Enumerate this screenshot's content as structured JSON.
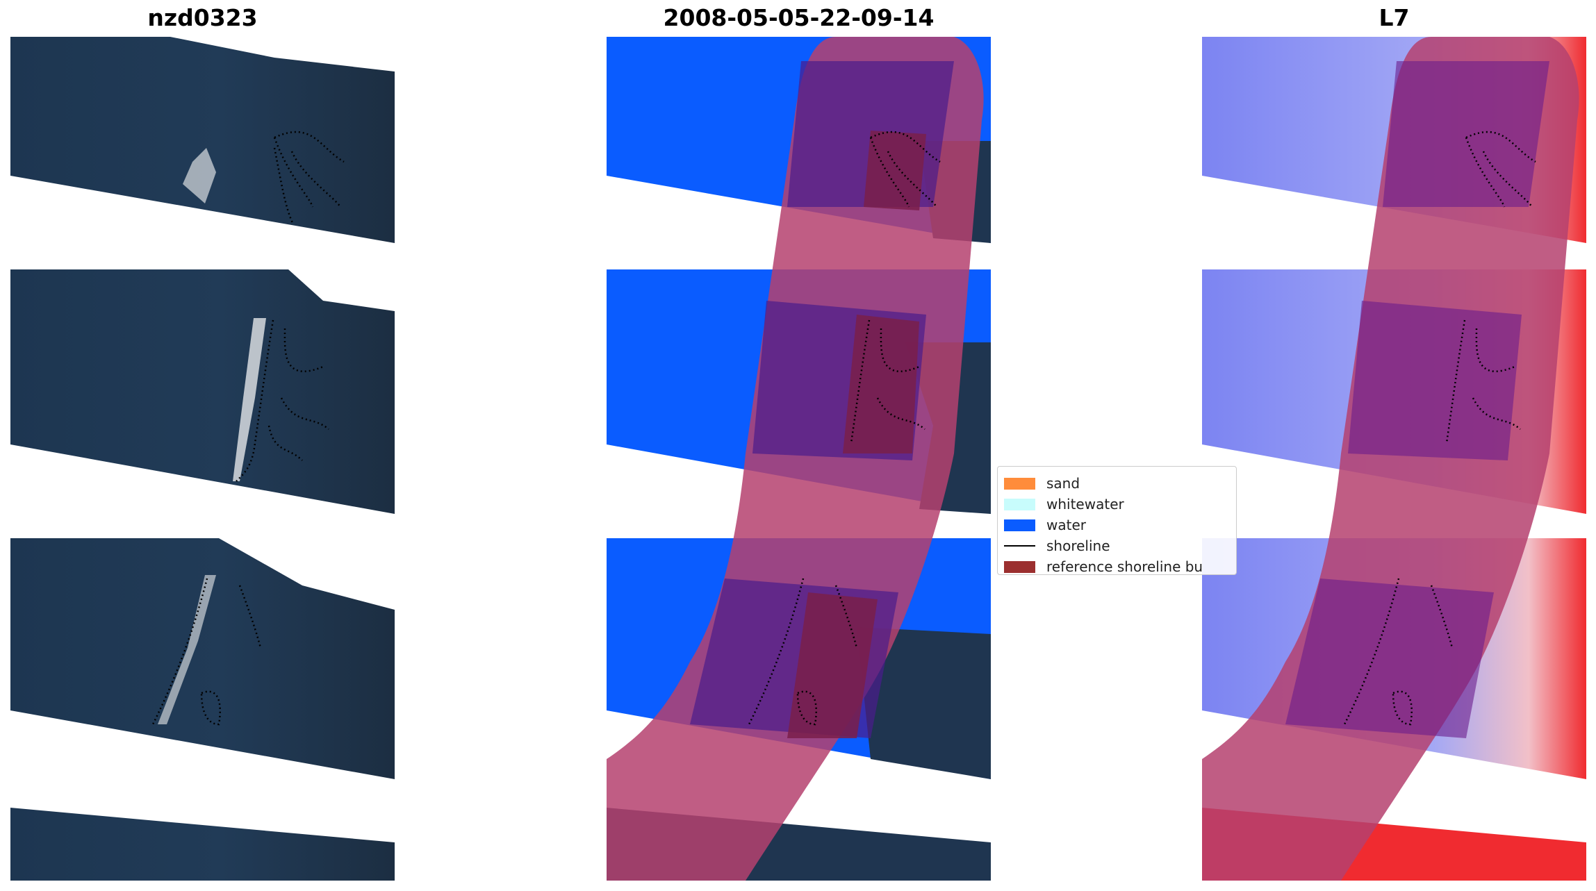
{
  "panels": [
    {
      "title": "nzd0323"
    },
    {
      "title": "2008-05-05-22-09-14"
    },
    {
      "title": "L7"
    }
  ],
  "legend": {
    "items": [
      {
        "label": "sand",
        "kind": "swatch",
        "color": "#ff8c3b"
      },
      {
        "label": "whitewater",
        "kind": "swatch",
        "color": "#c8fcfc"
      },
      {
        "label": "water",
        "kind": "swatch",
        "color": "#0a5cff"
      },
      {
        "label": "shoreline",
        "kind": "line",
        "color": "#000000"
      },
      {
        "label": "reference shoreline bu",
        "kind": "swatch",
        "color": "#9b2f2f"
      }
    ]
  },
  "colors": {
    "imagery": "#1f3550",
    "water_class": "#0a5cff",
    "reference_buffer": "#b5416f",
    "reference_buffer_dark": "#7a1f4a",
    "water_index_blue": "#7c84f2",
    "water_index_red": "#f02b30",
    "shoreline": "#000000",
    "background": "#ffffff"
  }
}
